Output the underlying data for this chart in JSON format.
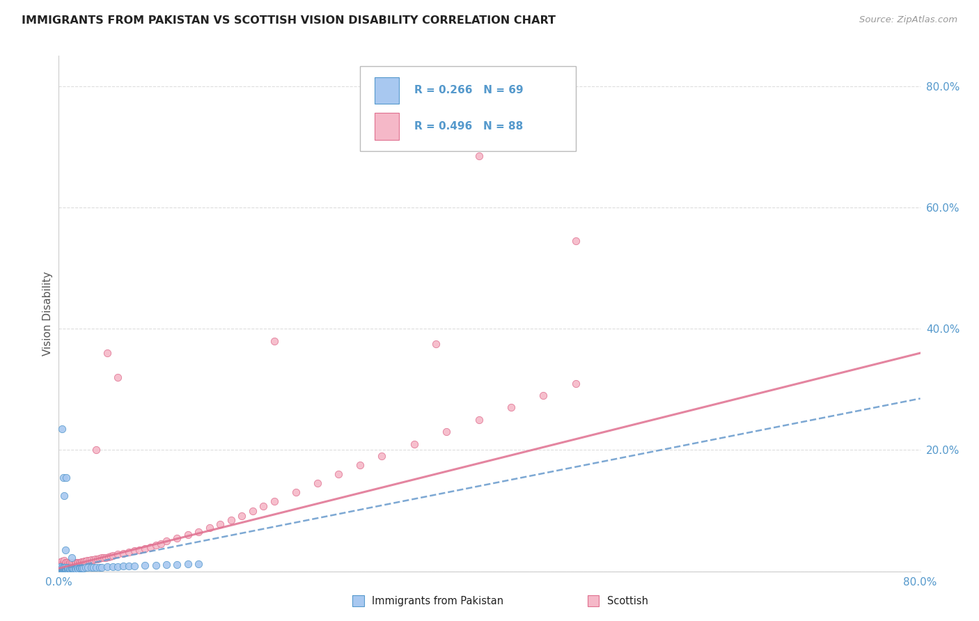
{
  "title": "IMMIGRANTS FROM PAKISTAN VS SCOTTISH VISION DISABILITY CORRELATION CHART",
  "source": "Source: ZipAtlas.com",
  "ylabel": "Vision Disability",
  "xlim": [
    0,
    0.8
  ],
  "ylim": [
    0,
    0.85
  ],
  "yticks": [
    0.0,
    0.2,
    0.4,
    0.6,
    0.8
  ],
  "ytick_labels": [
    "",
    "20.0%",
    "40.0%",
    "60.0%",
    "80.0%"
  ],
  "legend_text_1": "R = 0.266   N = 69",
  "legend_text_2": "R = 0.496   N = 88",
  "color_blue_fill": "#a8c8f0",
  "color_blue_edge": "#5599cc",
  "color_pink_fill": "#f5b8c8",
  "color_pink_edge": "#e07090",
  "color_blue_line": "#6699cc",
  "color_pink_line": "#e07090",
  "color_axis_label": "#5599cc",
  "color_ylabel": "#555555",
  "color_title": "#222222",
  "color_source": "#999999",
  "color_grid": "#dddddd",
  "background_color": "#ffffff",
  "pakistan_x": [
    0.001,
    0.001,
    0.002,
    0.002,
    0.002,
    0.002,
    0.003,
    0.003,
    0.003,
    0.003,
    0.004,
    0.004,
    0.004,
    0.005,
    0.005,
    0.005,
    0.005,
    0.006,
    0.006,
    0.006,
    0.007,
    0.007,
    0.008,
    0.008,
    0.008,
    0.009,
    0.009,
    0.01,
    0.01,
    0.011,
    0.012,
    0.012,
    0.013,
    0.013,
    0.014,
    0.015,
    0.016,
    0.017,
    0.018,
    0.019,
    0.02,
    0.021,
    0.022,
    0.023,
    0.025,
    0.027,
    0.03,
    0.032,
    0.035,
    0.038,
    0.04,
    0.045,
    0.05,
    0.055,
    0.06,
    0.065,
    0.07,
    0.08,
    0.09,
    0.1,
    0.11,
    0.12,
    0.13,
    0.003,
    0.004,
    0.005,
    0.006,
    0.007,
    0.012
  ],
  "pakistan_y": [
    0.003,
    0.005,
    0.002,
    0.004,
    0.006,
    0.008,
    0.003,
    0.004,
    0.005,
    0.007,
    0.002,
    0.004,
    0.006,
    0.003,
    0.004,
    0.005,
    0.007,
    0.003,
    0.005,
    0.006,
    0.003,
    0.004,
    0.003,
    0.004,
    0.006,
    0.003,
    0.005,
    0.003,
    0.004,
    0.004,
    0.004,
    0.005,
    0.004,
    0.005,
    0.004,
    0.004,
    0.004,
    0.005,
    0.004,
    0.005,
    0.005,
    0.005,
    0.005,
    0.005,
    0.006,
    0.006,
    0.006,
    0.006,
    0.007,
    0.007,
    0.007,
    0.008,
    0.008,
    0.008,
    0.009,
    0.009,
    0.009,
    0.01,
    0.01,
    0.011,
    0.011,
    0.012,
    0.012,
    0.235,
    0.155,
    0.125,
    0.035,
    0.155,
    0.023
  ],
  "scottish_x": [
    0.001,
    0.001,
    0.002,
    0.002,
    0.002,
    0.003,
    0.003,
    0.003,
    0.004,
    0.004,
    0.005,
    0.005,
    0.005,
    0.006,
    0.006,
    0.007,
    0.007,
    0.008,
    0.008,
    0.009,
    0.01,
    0.01,
    0.011,
    0.012,
    0.013,
    0.014,
    0.015,
    0.016,
    0.017,
    0.018,
    0.019,
    0.02,
    0.021,
    0.022,
    0.023,
    0.024,
    0.025,
    0.026,
    0.028,
    0.03,
    0.032,
    0.034,
    0.036,
    0.038,
    0.04,
    0.042,
    0.044,
    0.046,
    0.048,
    0.05,
    0.055,
    0.06,
    0.065,
    0.07,
    0.075,
    0.08,
    0.085,
    0.09,
    0.095,
    0.1,
    0.11,
    0.12,
    0.13,
    0.14,
    0.15,
    0.16,
    0.17,
    0.18,
    0.19,
    0.2,
    0.22,
    0.24,
    0.26,
    0.28,
    0.3,
    0.33,
    0.36,
    0.39,
    0.42,
    0.45,
    0.48,
    0.035,
    0.045,
    0.055,
    0.2,
    0.35,
    0.39,
    0.48
  ],
  "scottish_y": [
    0.01,
    0.014,
    0.008,
    0.012,
    0.016,
    0.009,
    0.013,
    0.017,
    0.01,
    0.015,
    0.009,
    0.013,
    0.018,
    0.01,
    0.015,
    0.01,
    0.014,
    0.011,
    0.015,
    0.012,
    0.011,
    0.015,
    0.013,
    0.013,
    0.014,
    0.013,
    0.014,
    0.014,
    0.015,
    0.015,
    0.015,
    0.015,
    0.016,
    0.016,
    0.016,
    0.017,
    0.017,
    0.018,
    0.018,
    0.019,
    0.019,
    0.02,
    0.02,
    0.021,
    0.022,
    0.022,
    0.023,
    0.024,
    0.025,
    0.026,
    0.028,
    0.03,
    0.032,
    0.034,
    0.035,
    0.037,
    0.04,
    0.043,
    0.046,
    0.05,
    0.055,
    0.06,
    0.065,
    0.072,
    0.078,
    0.085,
    0.092,
    0.1,
    0.108,
    0.115,
    0.13,
    0.145,
    0.16,
    0.175,
    0.19,
    0.21,
    0.23,
    0.25,
    0.27,
    0.29,
    0.31,
    0.2,
    0.36,
    0.32,
    0.38,
    0.375,
    0.685,
    0.545
  ],
  "pk_trend_x": [
    0.0,
    0.8
  ],
  "pk_trend_y": [
    0.003,
    0.285
  ],
  "sc_trend_x": [
    0.0,
    0.8
  ],
  "sc_trend_y": [
    0.005,
    0.36
  ]
}
